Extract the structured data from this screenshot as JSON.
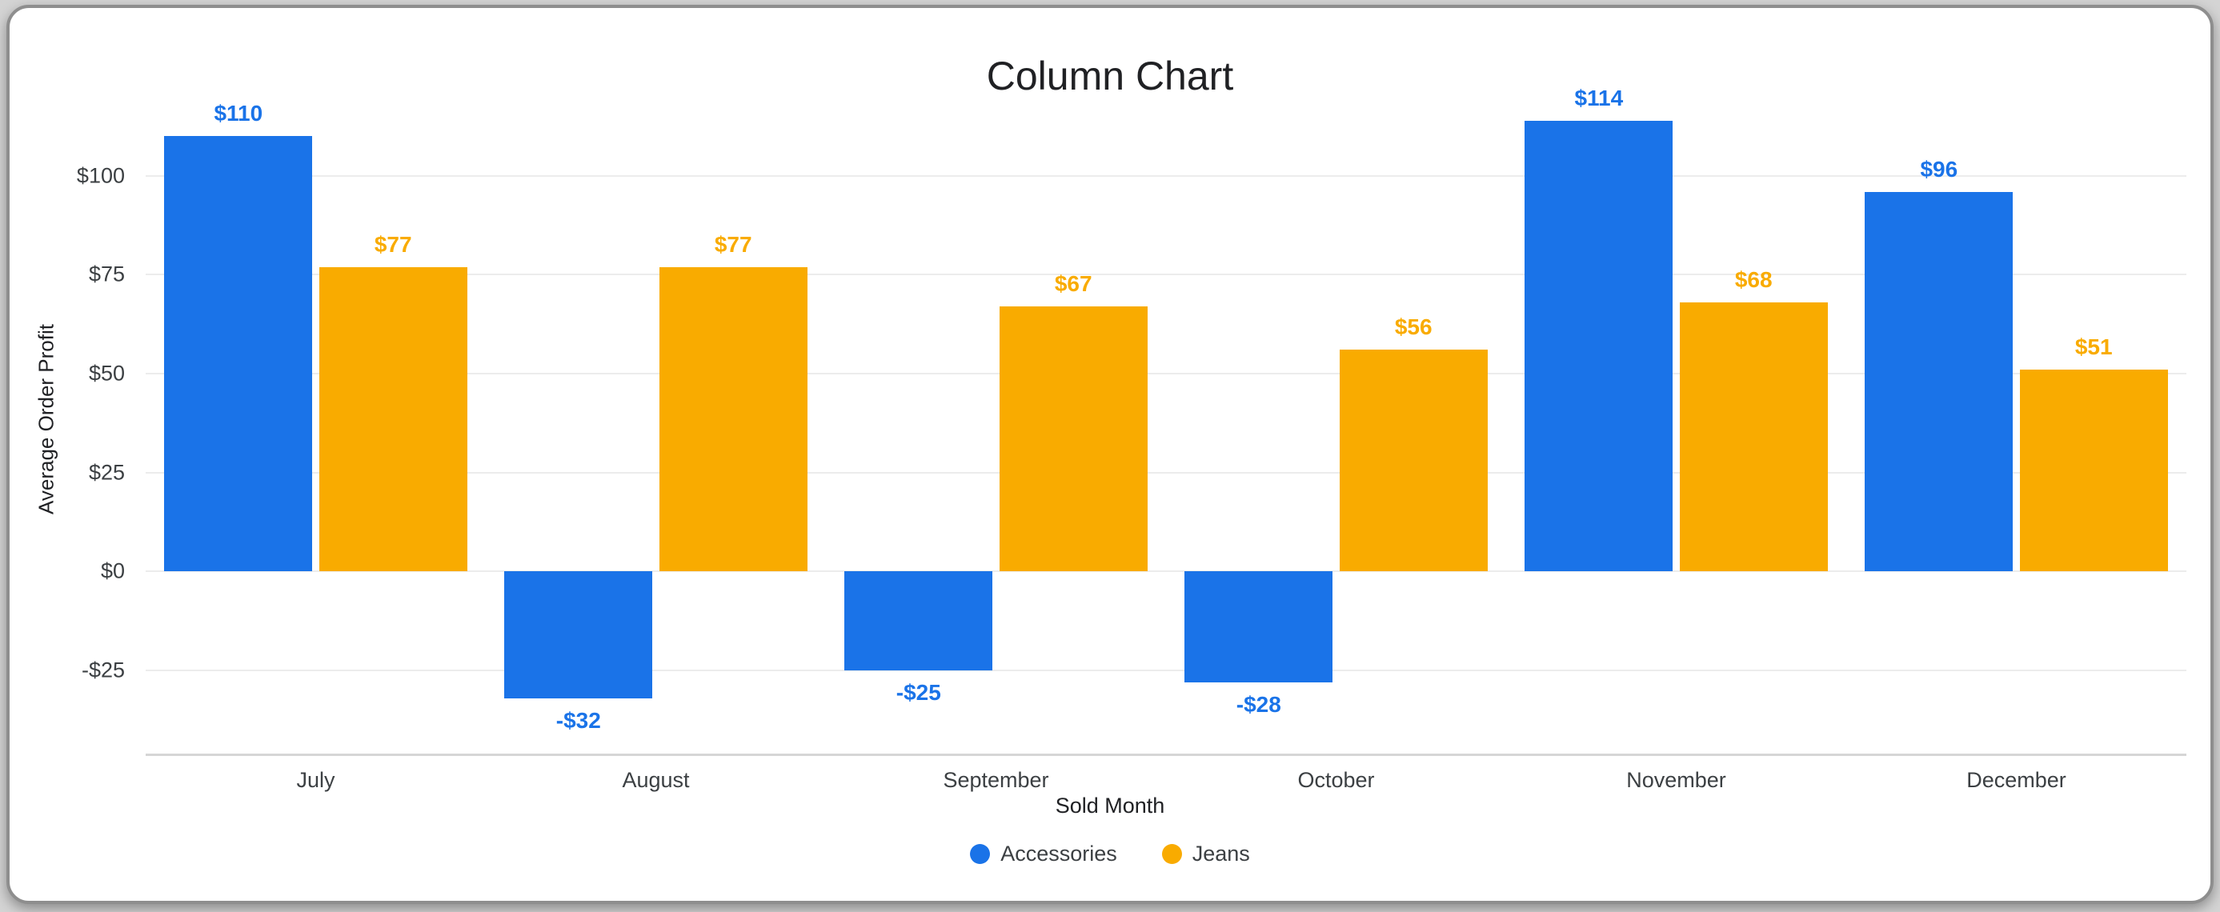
{
  "chart_data": {
    "type": "bar",
    "title": "Column Chart",
    "xlabel": "Sold Month",
    "ylabel": "Average Order Profit",
    "categories": [
      "July",
      "August",
      "September",
      "October",
      "November",
      "December"
    ],
    "series": [
      {
        "name": "Accessories",
        "color": "#1a73e8",
        "values": [
          110,
          -32,
          -25,
          -28,
          114,
          96
        ],
        "labels": [
          "$110",
          "-$32",
          "-$25",
          "-$28",
          "$114",
          "$96"
        ]
      },
      {
        "name": "Jeans",
        "color": "#f9ab00",
        "values": [
          77,
          77,
          67,
          56,
          68,
          51
        ],
        "labels": [
          "$77",
          "$77",
          "$67",
          "$56",
          "$68",
          "$51"
        ]
      }
    ],
    "yticks": [
      -25,
      0,
      25,
      50,
      75,
      100
    ],
    "ytick_labels": [
      "-$25",
      "$0",
      "$25",
      "$50",
      "$75",
      "$100"
    ],
    "ylim": [
      -46,
      123
    ],
    "grid": true,
    "legend_position": "bottom"
  },
  "colors": {
    "grid": "#ececec",
    "axis_line": "#d6d6d6",
    "text": "#3c4043",
    "title": "#202124"
  }
}
